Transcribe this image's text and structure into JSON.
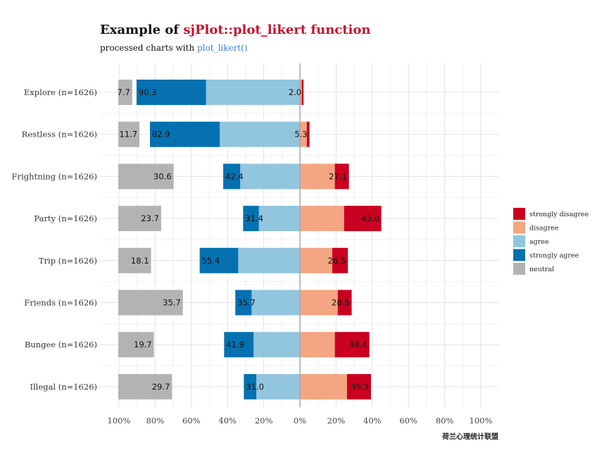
{
  "chart_data": {
    "type": "bar",
    "title_prefix": "Example of ",
    "title_accent": "sjPlot::plot_likert function",
    "subtitle_prefix": "processed charts with ",
    "subtitle_accent": "plot_likert()",
    "categories": [
      "Explore (n=1626)",
      "Restless (n=1626)",
      "Frightning (n=1626)",
      "Party (n=1626)",
      "Trip (n=1626)",
      "Friends (n=1626)",
      "Bungee (n=1626)",
      "Illegal (n=1626)"
    ],
    "series": [
      {
        "name": "strongly disagree",
        "color": "#ca0020",
        "side": "right",
        "values": [
          1.0,
          1.5,
          7.8,
          20.6,
          8.6,
          7.7,
          19.1,
          13.3
        ]
      },
      {
        "name": "disagree",
        "color": "#f4a582",
        "side": "right",
        "values": [
          1.0,
          3.8,
          19.3,
          24.4,
          17.9,
          20.9,
          19.3,
          26.0
        ]
      },
      {
        "name": "agree",
        "color": "#92c5de",
        "side": "left",
        "values": [
          51.9,
          44.3,
          33.0,
          22.7,
          34.1,
          26.7,
          25.6,
          24.1
        ]
      },
      {
        "name": "strongly agree",
        "color": "#0571b0",
        "side": "left",
        "values": [
          38.4,
          38.6,
          9.4,
          8.7,
          21.3,
          9.0,
          16.3,
          6.9
        ]
      },
      {
        "name": "neutral",
        "color": "#b3b3b3",
        "side": "far-left",
        "values": [
          7.7,
          11.7,
          30.6,
          23.7,
          18.1,
          35.7,
          19.7,
          29.7
        ]
      }
    ],
    "labels": {
      "neutral": [
        "7.7",
        "11.7",
        "30.6",
        "23.7",
        "18.1",
        "35.7",
        "19.7",
        "29.7"
      ],
      "agree_total": [
        "90.3",
        "82.9",
        "42.4",
        "31.4",
        "55.4",
        "35.7",
        "41.9",
        "31.0"
      ],
      "disagree_total": [
        "2.0",
        "5.3",
        "27.1",
        "45.0",
        "26.5",
        "28.6",
        "38.4",
        "39.3"
      ]
    },
    "xlim": [
      -100,
      100
    ],
    "xticks": [
      -100,
      -80,
      -60,
      -40,
      -20,
      0,
      20,
      40,
      60,
      80,
      100
    ],
    "xtick_labels": [
      "100%",
      "80%",
      "60%",
      "40%",
      "20%",
      "0%",
      "20%",
      "40%",
      "60%",
      "80%",
      "100%"
    ],
    "legend_order": [
      "strongly disagree",
      "disagree",
      "agree",
      "strongly agree",
      "neutral"
    ],
    "legend_position": "right",
    "grid": true,
    "caption": "荷兰心理统计联盟"
  }
}
